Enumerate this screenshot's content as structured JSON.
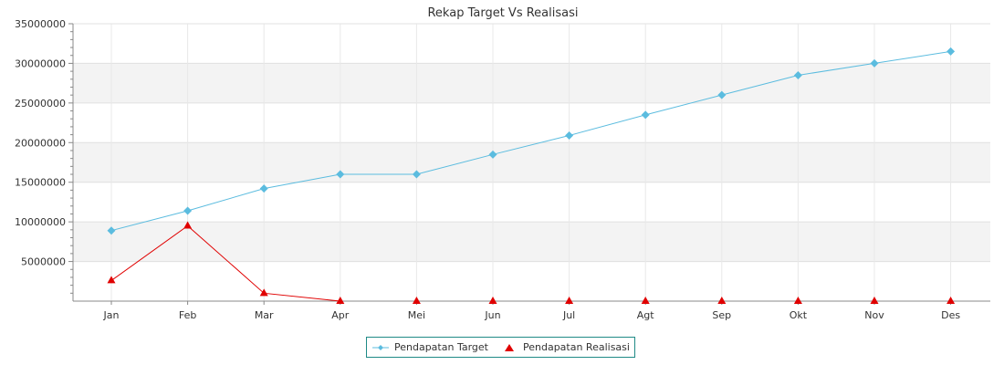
{
  "chart_data": {
    "type": "line",
    "title": "Rekap Target Vs Realisasi",
    "categories": [
      "Jan",
      "Feb",
      "Mar",
      "Apr",
      "Mei",
      "Jun",
      "Jul",
      "Agt",
      "Sep",
      "Okt",
      "Nov",
      "Des"
    ],
    "ylim": [
      0,
      35000000
    ],
    "yticks": [
      5000000,
      10000000,
      15000000,
      20000000,
      25000000,
      30000000,
      35000000
    ],
    "ytick_labels": [
      "5000000",
      "10000000",
      "15000000",
      "20000000",
      "25000000",
      "30000000",
      "35000000"
    ],
    "grid": true,
    "legend_placement": "bottom-center",
    "series": [
      {
        "name": "Pendapatan Target",
        "color": "#5bbcdf",
        "marker": "diamond",
        "values": [
          8900000,
          11400000,
          14200000,
          16000000,
          16000000,
          18500000,
          20900000,
          23500000,
          26000000,
          28500000,
          30000000,
          31500000
        ]
      },
      {
        "name": "Pendapatan Realisasi",
        "color": "#e00000",
        "marker": "triangle",
        "values": [
          2600000,
          9500000,
          1000000,
          0,
          0,
          0,
          0,
          0,
          0,
          0,
          0,
          0
        ]
      }
    ]
  }
}
